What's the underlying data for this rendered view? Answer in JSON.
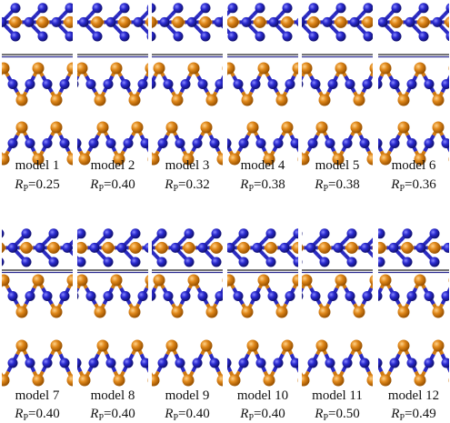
{
  "metric": {
    "symbol": "R",
    "subscript": "P",
    "relation": "="
  },
  "models": [
    {
      "name": "model 1",
      "rp": "0.25"
    },
    {
      "name": "model 2",
      "rp": "0.40"
    },
    {
      "name": "model 3",
      "rp": "0.32"
    },
    {
      "name": "model 4",
      "rp": "0.38"
    },
    {
      "name": "model 5",
      "rp": "0.38"
    },
    {
      "name": "model 6",
      "rp": "0.36"
    },
    {
      "name": "model 7",
      "rp": "0.40"
    },
    {
      "name": "model 8",
      "rp": "0.40"
    },
    {
      "name": "model 9",
      "rp": "0.40"
    },
    {
      "name": "model 10",
      "rp": "0.40"
    },
    {
      "name": "model 11",
      "rp": "0.50"
    },
    {
      "name": "model 12",
      "rp": "0.49"
    }
  ]
}
